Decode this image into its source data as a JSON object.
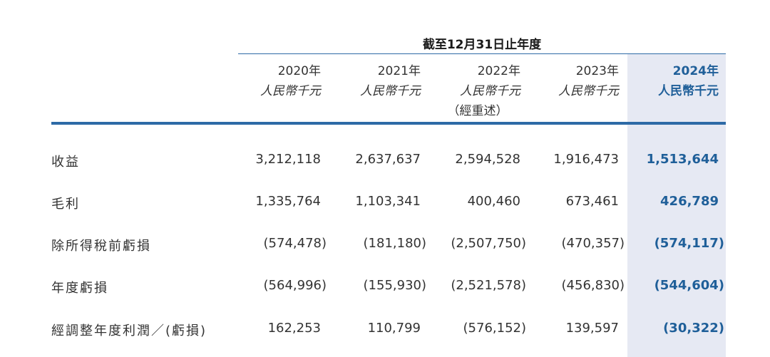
{
  "header": {
    "period": "截至12月31日止年度"
  },
  "columns": [
    {
      "year": "2020年",
      "unit": "人民幣千元",
      "note": ""
    },
    {
      "year": "2021年",
      "unit": "人民幣千元",
      "note": ""
    },
    {
      "year": "2022年",
      "unit": "人民幣千元",
      "note": "（經重述）"
    },
    {
      "year": "2023年",
      "unit": "人民幣千元",
      "note": ""
    },
    {
      "year": "2024年",
      "unit": "人民幣千元",
      "note": ""
    }
  ],
  "rows": [
    {
      "label": "收益",
      "values": [
        "3,212,118",
        "2,637,637",
        "2,594,528",
        "1,916,473",
        "1,513,644"
      ]
    },
    {
      "label": "毛利",
      "values": [
        "1,335,764",
        "1,103,341",
        "400,460",
        "673,461",
        "426,789"
      ]
    },
    {
      "label": "除所得稅前虧損",
      "values": [
        "(574,478)",
        "(181,180)",
        "(2,507,750)",
        "(470,357)",
        "(574,117)"
      ]
    },
    {
      "label": "年度虧損",
      "values": [
        "(564,996)",
        "(155,930)",
        "(2,521,578)",
        "(456,830)",
        "(544,604)"
      ]
    },
    {
      "label": "經調整年度利潤／(虧損)",
      "values": [
        "162,253",
        "110,799",
        "(576,152)",
        "139,597",
        "(30,322)"
      ]
    }
  ],
  "colors": {
    "accent": "#2d6aa6",
    "current_year_text": "#1f5f99",
    "current_year_background": "#e6e9f3"
  }
}
